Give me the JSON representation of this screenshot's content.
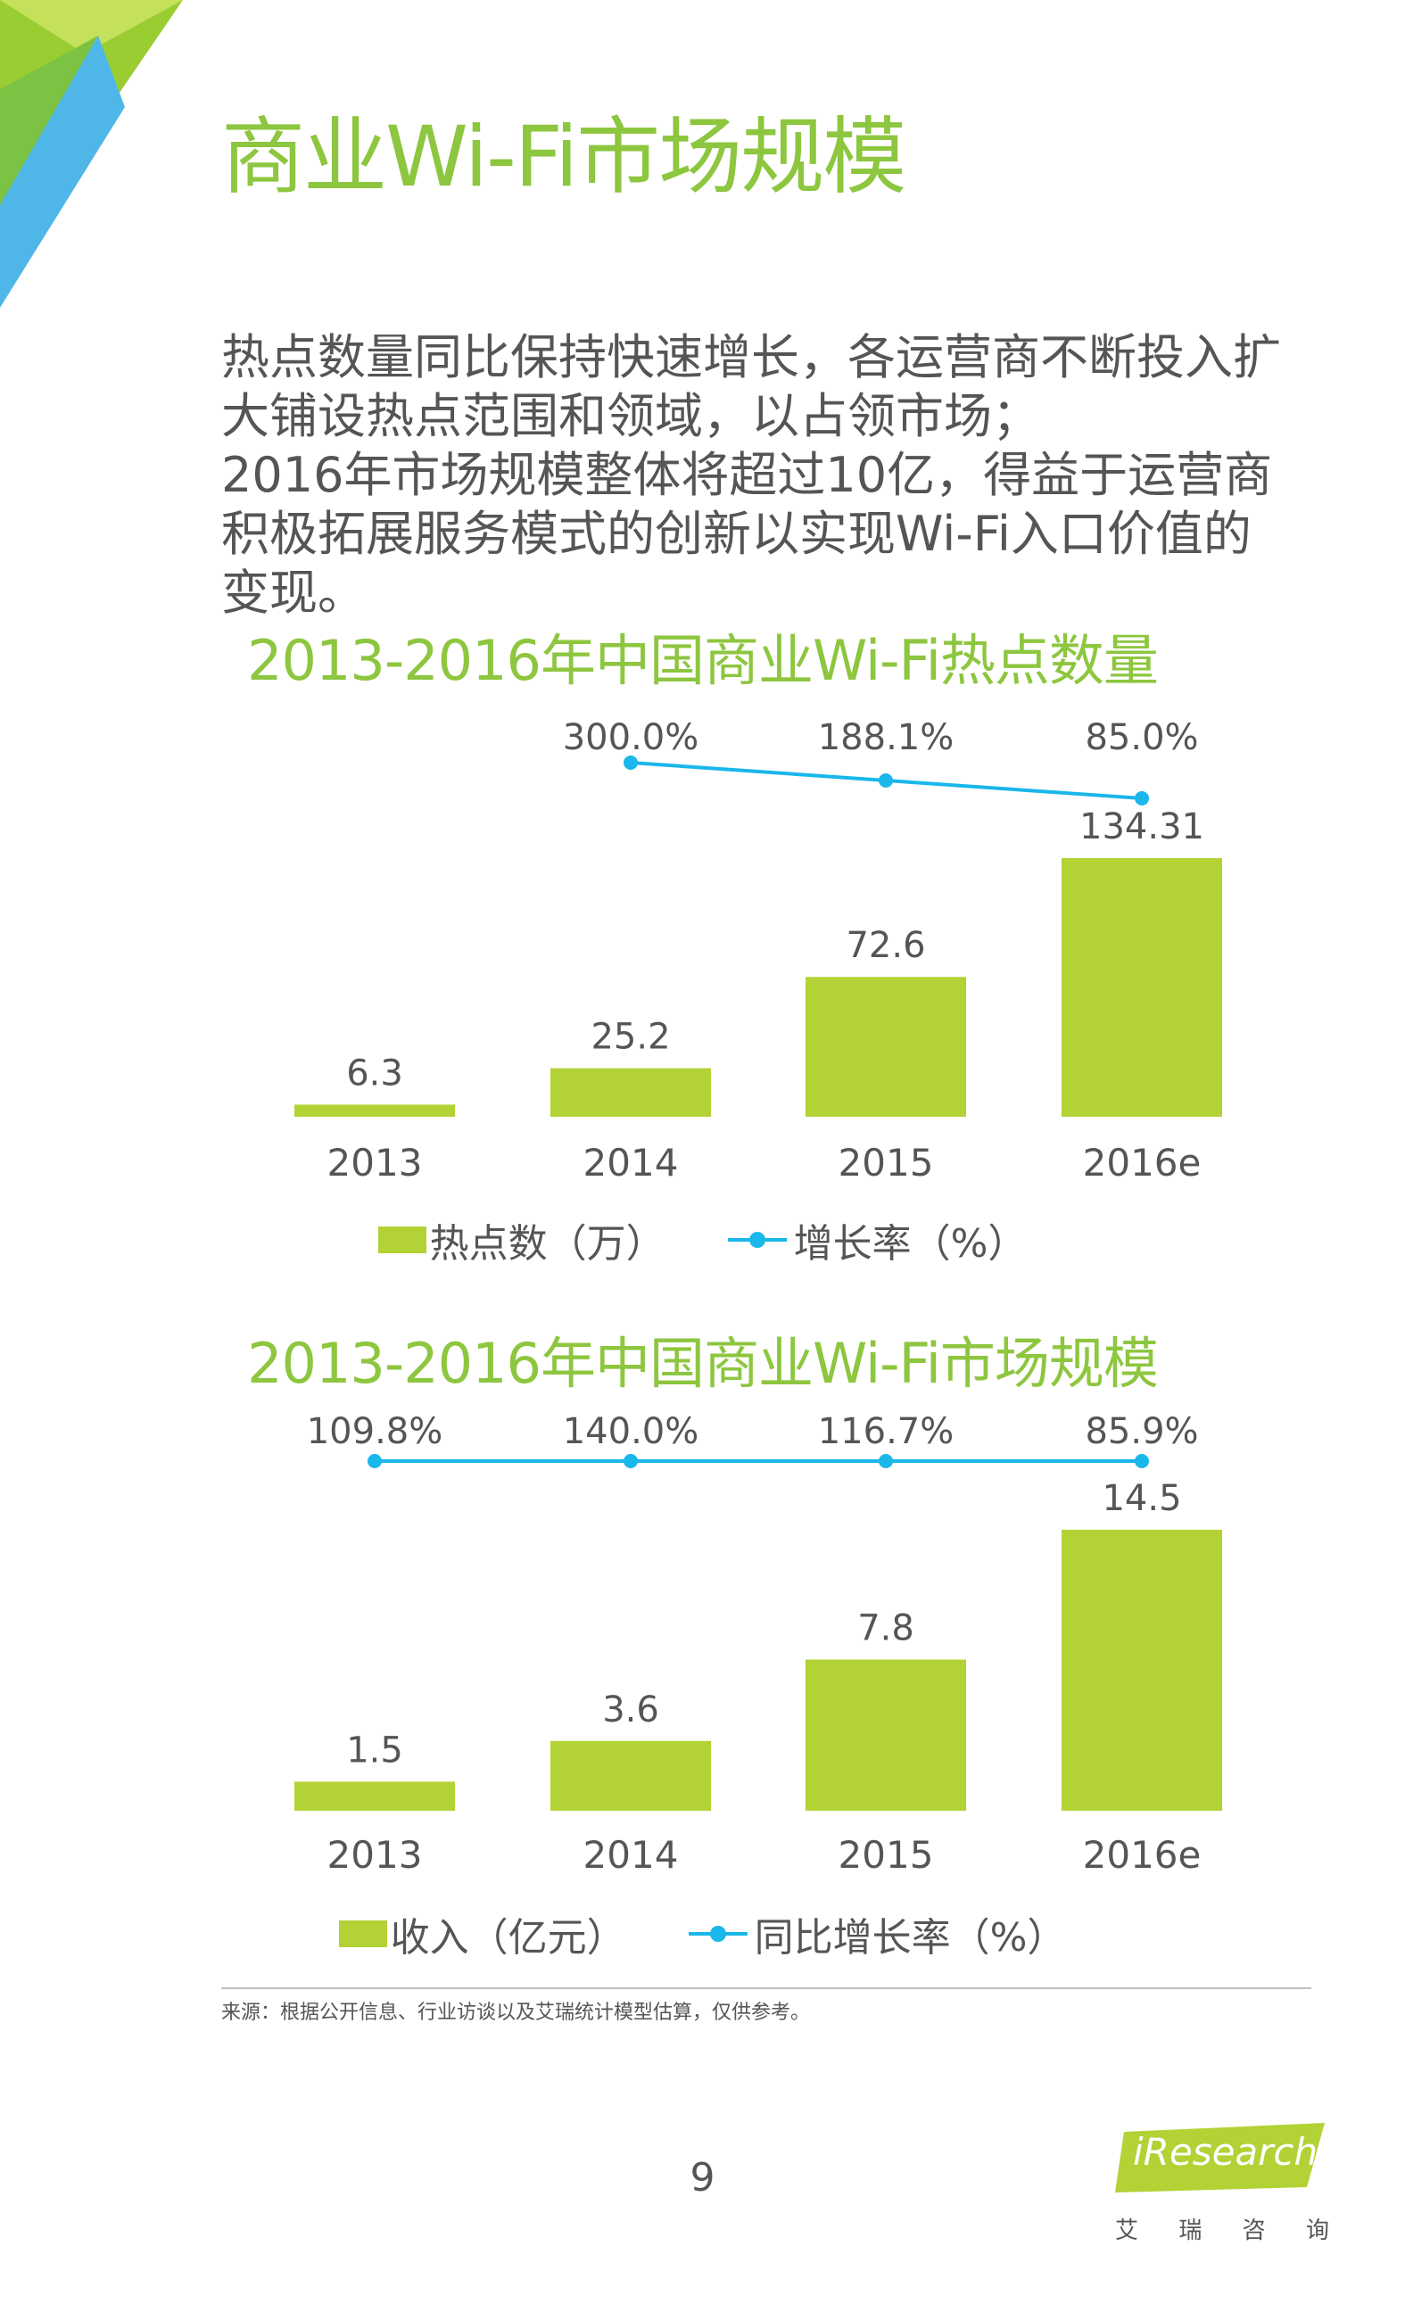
{
  "page": {
    "title": "商业Wi-Fi市场规模",
    "intro_lines": [
      "热点数量同比保持快速增长，各运营商不断投入扩",
      "大铺设热点范围和领域，以占领市场；",
      "2016年市场规模整体将超过10亿，得益于运营商",
      "积极拓展服务模式的创新以实现Wi-Fi入口价值的",
      "变现。"
    ],
    "source": "来源：根据公开信息、行业访谈以及艾瑞统计模型估算，仅供参考。",
    "page_number": "9",
    "logo": {
      "en": "iResearch",
      "cn": [
        "艾",
        "瑞",
        "咨",
        "询"
      ]
    }
  },
  "colors": {
    "accent_green": "#8dc63f",
    "bar_green": "#b2d235",
    "line_blue": "#1ab7ea",
    "text_gray": "#555555"
  },
  "chart_data": [
    {
      "type": "bar",
      "title": "2013-2016年中国商业Wi-Fi热点数量",
      "categories": [
        "2013",
        "2014",
        "2015",
        "2016e"
      ],
      "series": [
        {
          "name": "热点数（万）",
          "type": "bar",
          "values": [
            6.3,
            25.2,
            72.6,
            134.31
          ],
          "labels": [
            "6.3",
            "25.2",
            "72.6",
            "134.31"
          ]
        },
        {
          "name": "增长率（%）",
          "type": "line",
          "values": [
            null,
            300.0,
            188.1,
            85.0
          ],
          "labels": [
            "",
            "300.0%",
            "188.1%",
            "85.0%"
          ]
        }
      ],
      "legend_position": "bottom"
    },
    {
      "type": "bar",
      "title": "2013-2016年中国商业Wi-Fi市场规模",
      "categories": [
        "2013",
        "2014",
        "2015",
        "2016e"
      ],
      "series": [
        {
          "name": "收入（亿元）",
          "type": "bar",
          "values": [
            1.5,
            3.6,
            7.8,
            14.5
          ],
          "labels": [
            "1.5",
            "3.6",
            "7.8",
            "14.5"
          ]
        },
        {
          "name": "同比增长率（%）",
          "type": "line",
          "values": [
            109.8,
            140.0,
            116.7,
            85.9
          ],
          "labels": [
            "109.8%",
            "140.0%",
            "116.7%",
            "85.9%"
          ]
        }
      ],
      "legend_position": "bottom"
    }
  ]
}
